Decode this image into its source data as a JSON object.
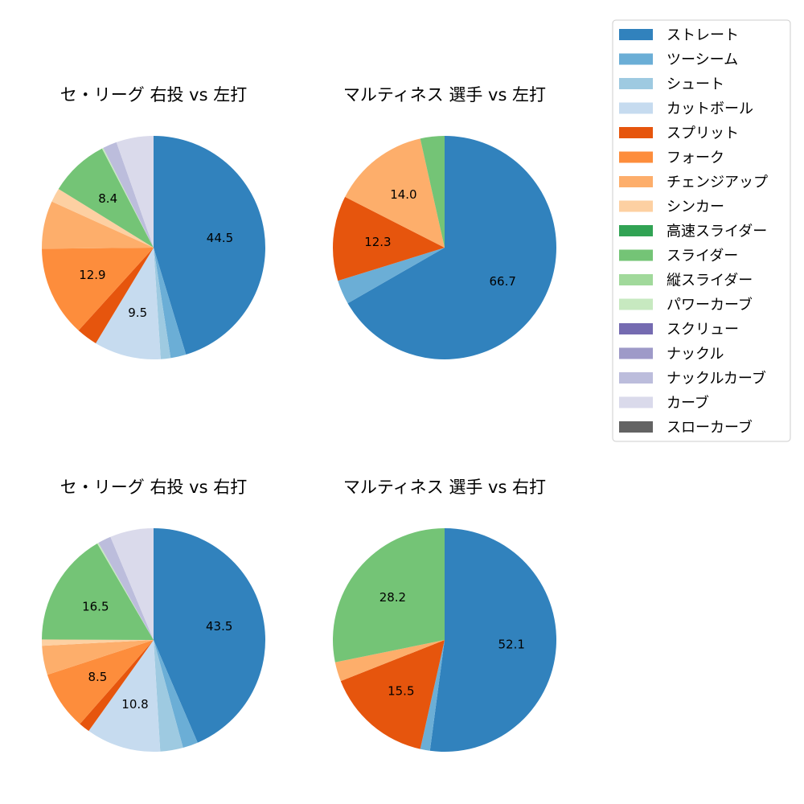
{
  "chart_data": {
    "type": "pie",
    "legend_position": "top-right",
    "categories": [
      "ストレート",
      "ツーシーム",
      "シュート",
      "カットボール",
      "スプリット",
      "フォーク",
      "チェンジアップ",
      "シンカー",
      "高速スライダー",
      "スライダー",
      "縦スライダー",
      "パワーカーブ",
      "スクリュー",
      "ナックル",
      "ナックルカーブ",
      "カーブ",
      "スローカーブ"
    ],
    "colors": [
      "#3182bd",
      "#6baed6",
      "#9ecae1",
      "#c6dbef",
      "#e6550d",
      "#fd8d3c",
      "#fdae6b",
      "#fdd0a2",
      "#31a354",
      "#74c476",
      "#a1d99b",
      "#c7e9c0",
      "#756bb1",
      "#9e9ac8",
      "#bcbddc",
      "#dadaeb",
      "#636363"
    ],
    "charts": [
      {
        "title": "セ・リーグ 右投 vs 左打",
        "values": [
          44.5,
          2.2,
          1.4,
          9.5,
          3.0,
          12.9,
          6.8,
          2.0,
          0,
          8.4,
          0,
          0.2,
          0,
          0,
          2.0,
          5.3,
          0
        ],
        "labels": [
          "44.5",
          "",
          "",
          "9.5",
          "",
          "12.9",
          "",
          "",
          "",
          "8.4",
          "",
          "",
          "",
          "",
          "",
          "",
          ""
        ]
      },
      {
        "title": "マルティネス 選手 vs 左打",
        "values": [
          66.7,
          3.5,
          0,
          0,
          12.3,
          0,
          14.0,
          0,
          0,
          3.5,
          0,
          0,
          0,
          0,
          0,
          0,
          0
        ],
        "labels": [
          "66.7",
          "",
          "",
          "",
          "12.3",
          "",
          "14.0",
          "",
          "",
          "",
          "",
          "",
          "",
          "",
          "",
          "",
          ""
        ]
      },
      {
        "title": "セ・リーグ 右投 vs 右打",
        "values": [
          43.5,
          2.2,
          3.3,
          10.8,
          1.6,
          8.5,
          4.2,
          0.9,
          0,
          16.5,
          0,
          0.2,
          0,
          0,
          1.9,
          6.3,
          0
        ],
        "labels": [
          "43.5",
          "",
          "",
          "10.8",
          "",
          "8.5",
          "",
          "",
          "",
          "16.5",
          "",
          "",
          "",
          "",
          "",
          "",
          ""
        ]
      },
      {
        "title": "マルティネス 選手 vs 右打",
        "values": [
          52.1,
          1.4,
          0,
          0,
          15.5,
          0,
          2.8,
          0,
          0,
          28.2,
          0,
          0,
          0,
          0,
          0,
          0,
          0
        ],
        "labels": [
          "52.1",
          "",
          "",
          "",
          "15.5",
          "",
          "",
          "",
          "",
          "28.2",
          "",
          "",
          "",
          "",
          "",
          "",
          ""
        ]
      }
    ]
  }
}
